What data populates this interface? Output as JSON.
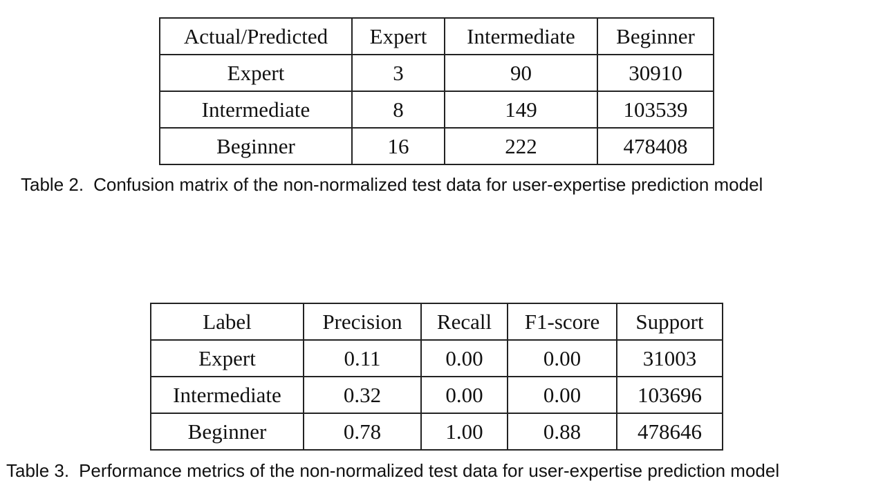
{
  "table2": {
    "headers": [
      "Actual/Predicted",
      "Expert",
      "Intermediate",
      "Beginner"
    ],
    "rows": [
      [
        "Expert",
        "3",
        "90",
        "30910"
      ],
      [
        "Intermediate",
        "8",
        "149",
        "103539"
      ],
      [
        "Beginner",
        "16",
        "222",
        "478408"
      ]
    ],
    "caption_label": "Table 2.",
    "caption_text": "Confusion matrix of the non-normalized test data for user-expertise prediction model"
  },
  "table3": {
    "headers": [
      "Label",
      "Precision",
      "Recall",
      "F1-score",
      "Support"
    ],
    "rows": [
      [
        "Expert",
        "0.11",
        "0.00",
        "0.00",
        "31003"
      ],
      [
        "Intermediate",
        "0.32",
        "0.00",
        "0.00",
        "103696"
      ],
      [
        "Beginner",
        "0.78",
        "1.00",
        "0.88",
        "478646"
      ]
    ],
    "caption_label": "Table 3.",
    "caption_text": "Performance metrics of the non-normalized test data for user-expertise prediction model"
  }
}
